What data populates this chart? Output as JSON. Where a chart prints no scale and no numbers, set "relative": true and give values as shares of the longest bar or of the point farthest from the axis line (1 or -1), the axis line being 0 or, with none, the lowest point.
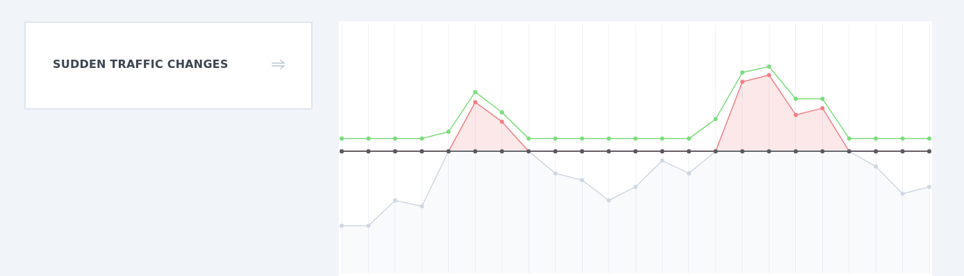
{
  "chart_data": {
    "type": "line",
    "title": "SUDDEN TRAFFIC CHANGES",
    "relative": true,
    "grid": "x",
    "legend": false,
    "marker": "circle",
    "categories": [
      null,
      null,
      null,
      null,
      null,
      null,
      null,
      null,
      null,
      null,
      null,
      null,
      null,
      null,
      null,
      null,
      null,
      null,
      null,
      null,
      null,
      null,
      null
    ],
    "series": [
      {
        "type": "line",
        "color": "#7ddc7e",
        "values": [
          0.15,
          0.15,
          0.15,
          0.15,
          0.23,
          0.7,
          0.46,
          0.15,
          0.15,
          0.15,
          0.15,
          0.15,
          0.15,
          0.15,
          0.38,
          0.93,
          1.0,
          0.62,
          0.62,
          0.15,
          0.15,
          0.15,
          0.15
        ]
      },
      {
        "type": "area",
        "color": "#f07f86",
        "values": [
          0,
          0,
          0,
          0,
          0,
          0.58,
          0.35,
          0,
          0,
          0,
          0,
          0,
          0,
          0,
          0,
          0.82,
          0.9,
          0.43,
          0.51,
          0,
          0,
          0,
          0
        ]
      },
      {
        "type": "line",
        "color": "#555a60",
        "values": [
          0,
          0,
          0,
          0,
          0,
          0,
          0,
          0,
          0,
          0,
          0,
          0,
          0,
          0,
          0,
          0,
          0,
          0,
          0,
          0,
          0,
          0,
          0
        ]
      },
      {
        "type": "area",
        "color": "#cfd8e2",
        "values": [
          -0.88,
          -0.88,
          -0.58,
          -0.65,
          0,
          0,
          0,
          0,
          -0.26,
          -0.34,
          -0.58,
          -0.42,
          -0.11,
          -0.26,
          0,
          0,
          0,
          0,
          0,
          0,
          -0.18,
          -0.5,
          -0.42
        ]
      }
    ]
  }
}
